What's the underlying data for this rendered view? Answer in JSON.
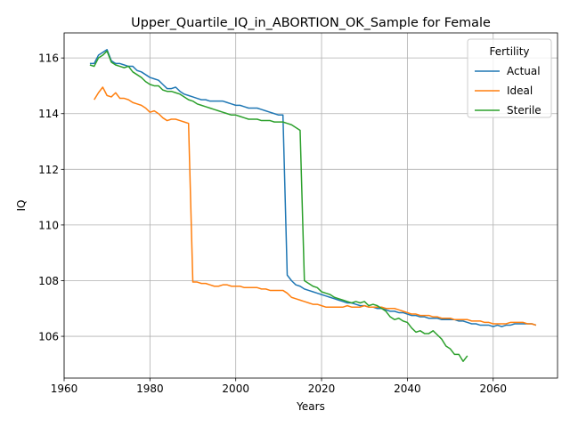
{
  "chart_data": {
    "type": "line",
    "title": "Upper_Quartile_IQ_in_ABORTION_OK_Sample for Female",
    "xlabel": "Years",
    "ylabel": "IQ",
    "xlim": [
      1960,
      2075
    ],
    "ylim": [
      104.5,
      116.9
    ],
    "xticks": [
      1960,
      1980,
      2000,
      2020,
      2040,
      2060
    ],
    "yticks": [
      106,
      108,
      110,
      112,
      114,
      116
    ],
    "grid": true,
    "legend": {
      "title": "Fertility",
      "placement": "top-right"
    },
    "series": [
      {
        "name": "Actual",
        "color": "#1f77b4",
        "x": [
          1966,
          1967,
          1968,
          1969,
          1970,
          1971,
          1972,
          1973,
          1974,
          1975,
          1976,
          1977,
          1978,
          1979,
          1980,
          1981,
          1982,
          1983,
          1984,
          1985,
          1986,
          1987,
          1988,
          1989,
          1990,
          1991,
          1992,
          1993,
          1994,
          1995,
          1996,
          1997,
          1998,
          1999,
          2000,
          2001,
          2002,
          2003,
          2004,
          2005,
          2006,
          2007,
          2008,
          2009,
          2010,
          2011,
          2012,
          2013,
          2014,
          2015,
          2016,
          2017,
          2018,
          2019,
          2020,
          2021,
          2022,
          2023,
          2024,
          2025,
          2026,
          2027,
          2028,
          2029,
          2030,
          2031,
          2032,
          2033,
          2034,
          2035,
          2036,
          2037,
          2038,
          2039,
          2040,
          2041,
          2042,
          2043,
          2044,
          2045,
          2046,
          2047,
          2048,
          2049,
          2050,
          2051,
          2052,
          2053,
          2054,
          2055,
          2056,
          2057,
          2058,
          2059,
          2060,
          2061,
          2062,
          2063,
          2064,
          2065,
          2066,
          2067,
          2068,
          2069,
          2070
        ],
        "y": [
          115.8,
          115.8,
          116.1,
          116.2,
          116.3,
          115.9,
          115.8,
          115.8,
          115.75,
          115.7,
          115.7,
          115.55,
          115.5,
          115.4,
          115.3,
          115.25,
          115.2,
          115.05,
          114.9,
          114.9,
          114.95,
          114.8,
          114.7,
          114.65,
          114.6,
          114.55,
          114.5,
          114.5,
          114.45,
          114.45,
          114.45,
          114.45,
          114.4,
          114.35,
          114.3,
          114.3,
          114.25,
          114.2,
          114.2,
          114.2,
          114.15,
          114.1,
          114.05,
          114.0,
          113.95,
          113.95,
          108.2,
          108.0,
          107.85,
          107.8,
          107.7,
          107.65,
          107.6,
          107.55,
          107.5,
          107.45,
          107.4,
          107.35,
          107.3,
          107.25,
          107.2,
          107.2,
          107.15,
          107.1,
          107.1,
          107.05,
          107.05,
          107.0,
          107.0,
          106.95,
          106.9,
          106.9,
          106.85,
          106.85,
          106.8,
          106.75,
          106.75,
          106.7,
          106.7,
          106.65,
          106.65,
          106.65,
          106.6,
          106.6,
          106.6,
          106.6,
          106.55,
          106.55,
          106.5,
          106.45,
          106.45,
          106.4,
          106.4,
          106.4,
          106.35,
          106.4,
          106.35,
          106.4,
          106.4,
          106.45,
          106.45,
          106.45,
          106.45,
          106.45,
          106.4
        ]
      },
      {
        "name": "Ideal",
        "color": "#ff7f0e",
        "x": [
          1967,
          1968,
          1969,
          1970,
          1971,
          1972,
          1973,
          1974,
          1975,
          1976,
          1977,
          1978,
          1979,
          1980,
          1981,
          1982,
          1983,
          1984,
          1985,
          1986,
          1987,
          1988,
          1989,
          1990,
          1991,
          1992,
          1993,
          1994,
          1995,
          1996,
          1997,
          1998,
          1999,
          2000,
          2001,
          2002,
          2003,
          2004,
          2005,
          2006,
          2007,
          2008,
          2009,
          2010,
          2011,
          2012,
          2013,
          2014,
          2015,
          2016,
          2017,
          2018,
          2019,
          2020,
          2021,
          2022,
          2023,
          2024,
          2025,
          2026,
          2027,
          2028,
          2029,
          2030,
          2031,
          2032,
          2033,
          2034,
          2035,
          2036,
          2037,
          2038,
          2039,
          2040,
          2041,
          2042,
          2043,
          2044,
          2045,
          2046,
          2047,
          2048,
          2049,
          2050,
          2051,
          2052,
          2053,
          2054,
          2055,
          2056,
          2057,
          2058,
          2059,
          2060,
          2061,
          2062,
          2063,
          2064,
          2065,
          2066,
          2067,
          2068,
          2069,
          2070
        ],
        "y": [
          114.5,
          114.75,
          114.95,
          114.65,
          114.6,
          114.75,
          114.55,
          114.55,
          114.5,
          114.4,
          114.35,
          114.3,
          114.2,
          114.05,
          114.1,
          114.0,
          113.85,
          113.75,
          113.8,
          113.8,
          113.75,
          113.7,
          113.65,
          107.95,
          107.95,
          107.9,
          107.9,
          107.85,
          107.8,
          107.8,
          107.85,
          107.85,
          107.8,
          107.8,
          107.8,
          107.75,
          107.75,
          107.75,
          107.75,
          107.7,
          107.7,
          107.65,
          107.65,
          107.65,
          107.65,
          107.55,
          107.4,
          107.35,
          107.3,
          107.25,
          107.2,
          107.15,
          107.15,
          107.1,
          107.05,
          107.05,
          107.05,
          107.05,
          107.05,
          107.1,
          107.05,
          107.05,
          107.05,
          107.1,
          107.05,
          107.05,
          107.05,
          107.05,
          107.0,
          107.0,
          107.0,
          106.95,
          106.9,
          106.85,
          106.8,
          106.8,
          106.75,
          106.75,
          106.75,
          106.7,
          106.7,
          106.65,
          106.65,
          106.65,
          106.6,
          106.6,
          106.6,
          106.6,
          106.55,
          106.55,
          106.55,
          106.5,
          106.5,
          106.45,
          106.45,
          106.45,
          106.45,
          106.5,
          106.5,
          106.5,
          106.5,
          106.45,
          106.45,
          106.4
        ]
      },
      {
        "name": "Sterile",
        "color": "#2ca02c",
        "x": [
          1966,
          1967,
          1968,
          1969,
          1970,
          1971,
          1972,
          1973,
          1974,
          1975,
          1976,
          1977,
          1978,
          1979,
          1980,
          1981,
          1982,
          1983,
          1984,
          1985,
          1986,
          1987,
          1988,
          1989,
          1990,
          1991,
          1992,
          1993,
          1994,
          1995,
          1996,
          1997,
          1998,
          1999,
          2000,
          2001,
          2002,
          2003,
          2004,
          2005,
          2006,
          2007,
          2008,
          2009,
          2010,
          2011,
          2012,
          2013,
          2014,
          2015,
          2016,
          2017,
          2018,
          2019,
          2020,
          2021,
          2022,
          2023,
          2024,
          2025,
          2026,
          2027,
          2028,
          2029,
          2030,
          2031,
          2032,
          2033,
          2034,
          2035,
          2036,
          2037,
          2038,
          2039,
          2040,
          2041,
          2042,
          2043,
          2044,
          2045,
          2046,
          2047,
          2048,
          2049,
          2050,
          2051,
          2052,
          2053,
          2054
        ],
        "y": [
          115.75,
          115.7,
          116.0,
          116.1,
          116.25,
          115.85,
          115.75,
          115.7,
          115.65,
          115.7,
          115.5,
          115.4,
          115.3,
          115.15,
          115.05,
          115.0,
          115.0,
          114.85,
          114.8,
          114.8,
          114.75,
          114.7,
          114.6,
          114.5,
          114.45,
          114.35,
          114.3,
          114.25,
          114.2,
          114.15,
          114.1,
          114.05,
          114.0,
          113.95,
          113.95,
          113.9,
          113.85,
          113.8,
          113.8,
          113.8,
          113.75,
          113.75,
          113.75,
          113.7,
          113.7,
          113.7,
          113.65,
          113.6,
          113.5,
          113.4,
          108.0,
          107.9,
          107.8,
          107.75,
          107.6,
          107.55,
          107.5,
          107.4,
          107.35,
          107.3,
          107.25,
          107.2,
          107.25,
          107.2,
          107.25,
          107.1,
          107.15,
          107.1,
          107.0,
          106.9,
          106.7,
          106.6,
          106.65,
          106.55,
          106.5,
          106.3,
          106.15,
          106.2,
          106.1,
          106.1,
          106.2,
          106.05,
          105.9,
          105.65,
          105.55,
          105.35,
          105.35,
          105.1,
          105.3
        ]
      }
    ]
  }
}
